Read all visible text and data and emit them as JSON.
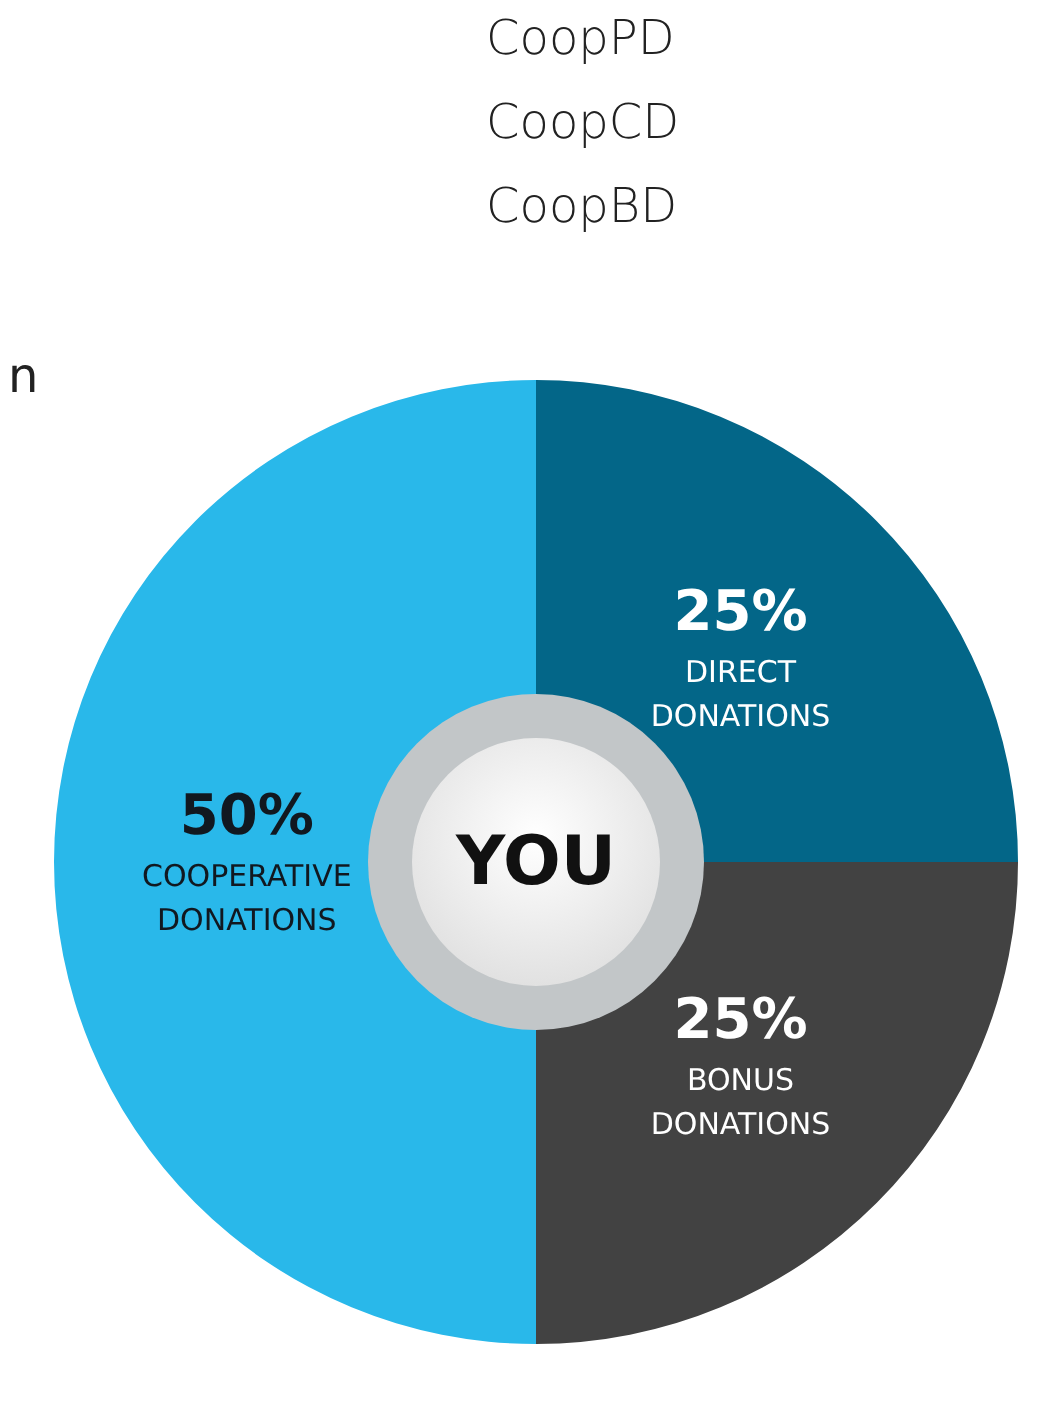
{
  "chart_data": {
    "type": "donut",
    "categories": [
      "DIRECT DONATIONS",
      "BONUS DONATIONS",
      "COOPERATIVE DONATIONS"
    ],
    "values": [
      25,
      25,
      50
    ],
    "colors": [
      "#036688",
      "#424242",
      "#29b8ea"
    ],
    "value_labels": [
      "25%",
      "25%",
      "50%"
    ],
    "annotations": [
      "CoopPD",
      "CoopCD",
      "CoopBD",
      "n",
      "YOU"
    ]
  }
}
